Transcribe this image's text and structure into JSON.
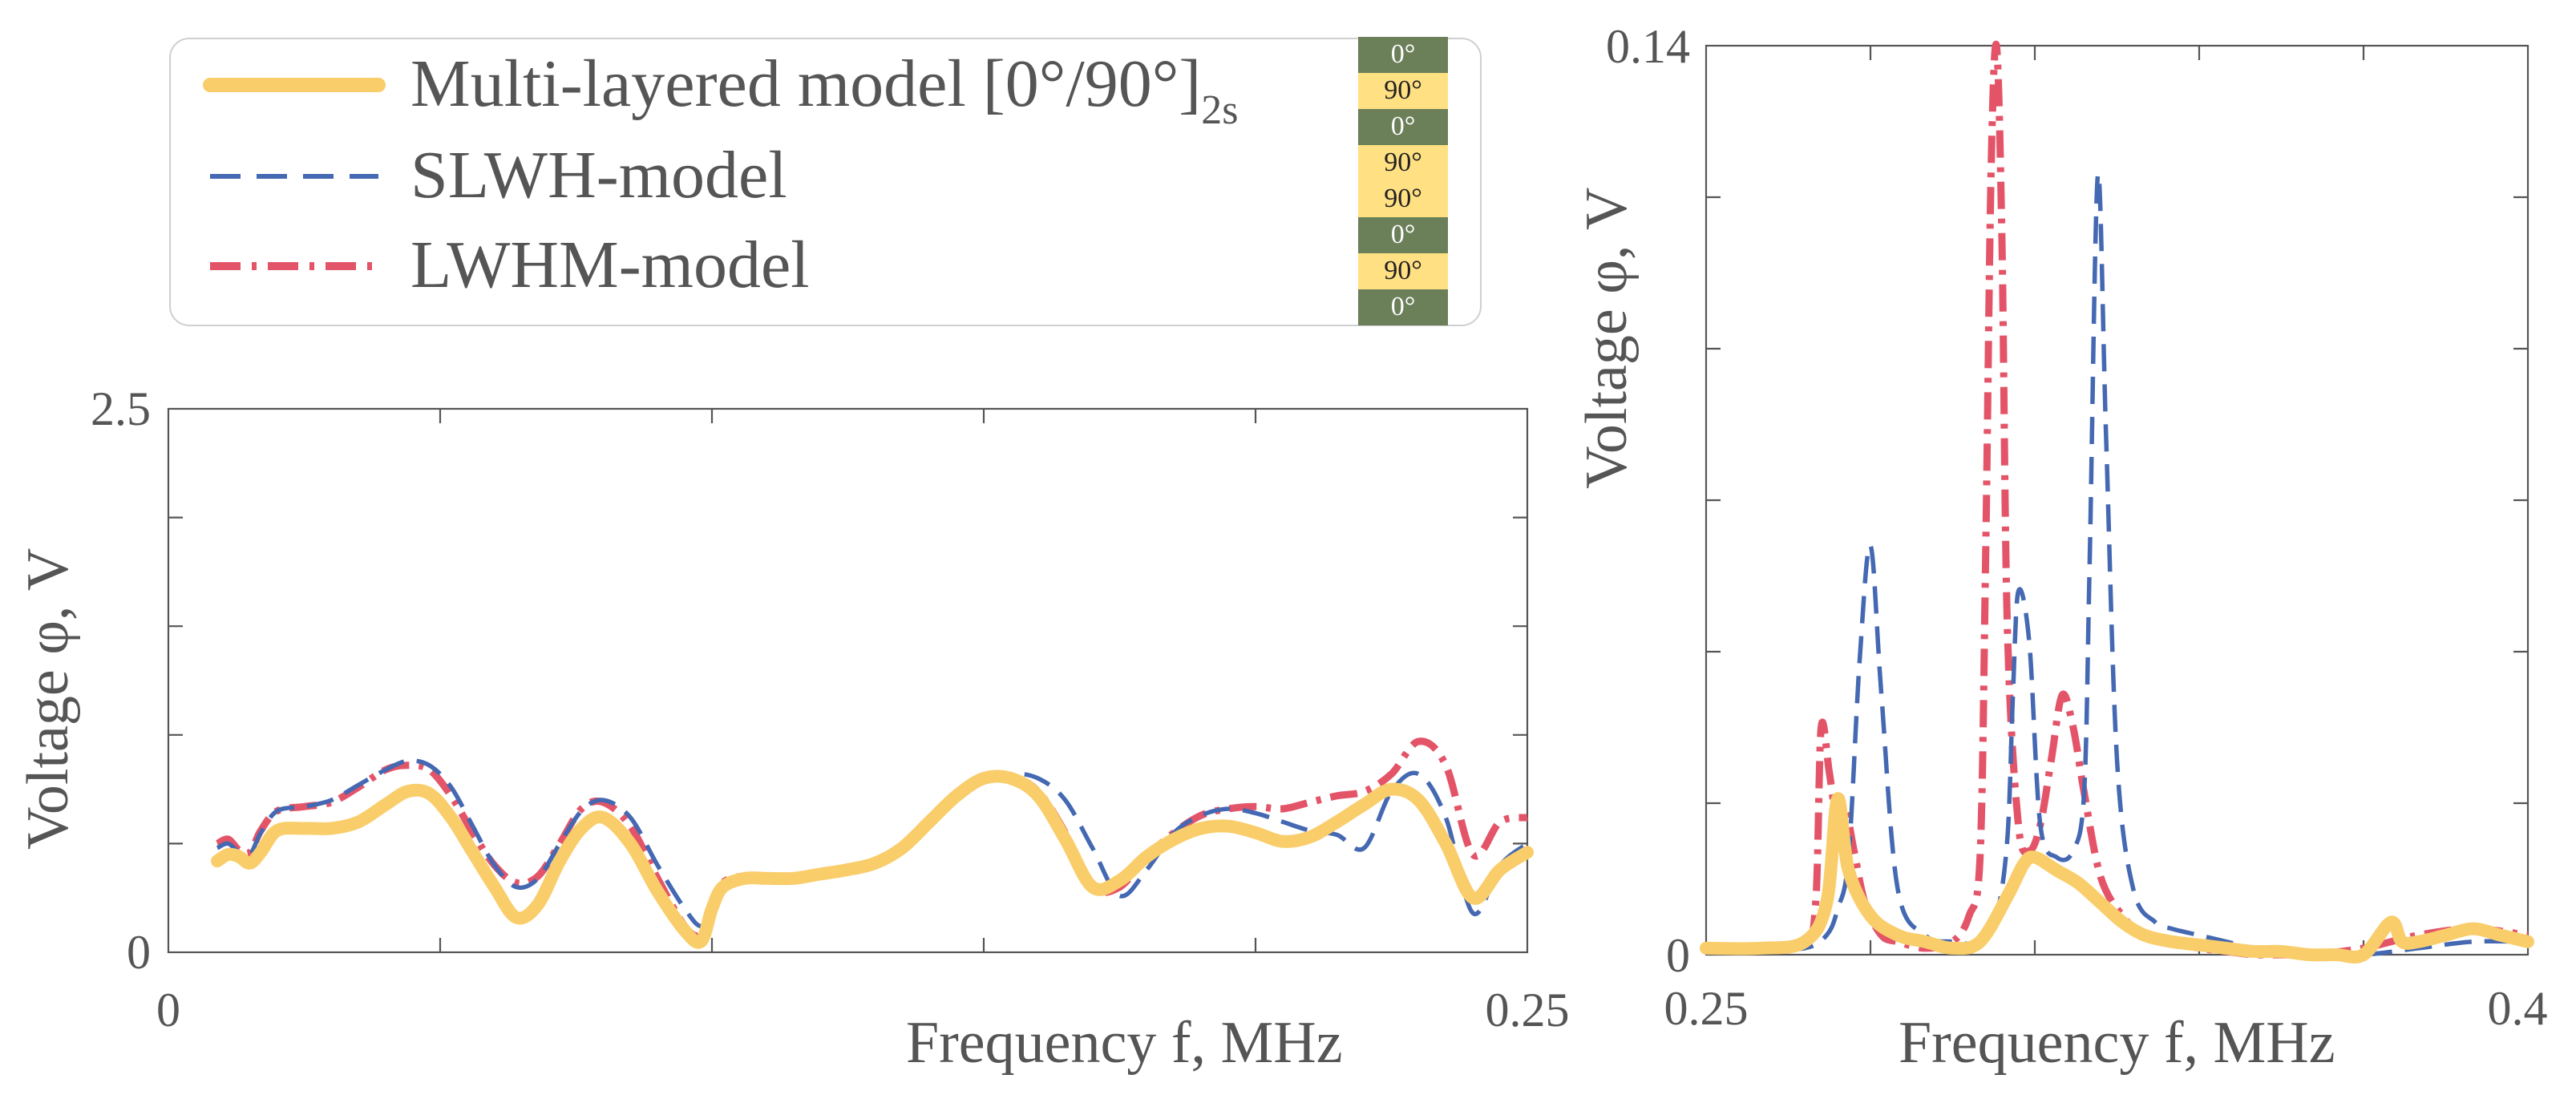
{
  "legend": {
    "entries": [
      {
        "label": "Multi-layered model [0°/90°]",
        "subscript": "2s",
        "style": "solid",
        "color": "#F9CD6A"
      },
      {
        "label": "SLWH-model",
        "subscript": "",
        "style": "dashed",
        "color": "#4468B2"
      },
      {
        "label": "LWHM-model",
        "subscript": "",
        "style": "dashdot",
        "color": "#E35468"
      }
    ],
    "layup": {
      "layers": [
        "0°",
        "90°",
        "0°",
        "90°",
        "90°",
        "0°",
        "90°",
        "0°"
      ],
      "colors": {
        "0": "#6B7F59",
        "90": "#FFE082"
      }
    }
  },
  "chart_data": [
    {
      "type": "line",
      "name": "left",
      "xlabel": "Frequency  f, MHz",
      "ylabel": "Voltage  φ, V",
      "xlim": [
        0,
        0.25
      ],
      "ylim": [
        0,
        2.5
      ],
      "xtick_labels": [
        "0",
        "0.25"
      ],
      "ytick_labels": [
        "0",
        "2.5"
      ],
      "series": [
        {
          "name": "Multi-layered model",
          "x": [
            0.009,
            0.011,
            0.013,
            0.015,
            0.017,
            0.02,
            0.025,
            0.03,
            0.035,
            0.04,
            0.044,
            0.048,
            0.052,
            0.056,
            0.06,
            0.064,
            0.068,
            0.072,
            0.076,
            0.08,
            0.085,
            0.09,
            0.095,
            0.098,
            0.1,
            0.102,
            0.106,
            0.11,
            0.115,
            0.12,
            0.125,
            0.13,
            0.135,
            0.14,
            0.145,
            0.15,
            0.155,
            0.16,
            0.165,
            0.17,
            0.175,
            0.18,
            0.185,
            0.19,
            0.195,
            0.2,
            0.205,
            0.21,
            0.215,
            0.22,
            0.225,
            0.23,
            0.235,
            0.24,
            0.245,
            0.25
          ],
          "y": [
            0.42,
            0.45,
            0.44,
            0.41,
            0.46,
            0.56,
            0.57,
            0.57,
            0.6,
            0.68,
            0.74,
            0.73,
            0.62,
            0.46,
            0.3,
            0.16,
            0.22,
            0.42,
            0.57,
            0.62,
            0.5,
            0.28,
            0.1,
            0.05,
            0.2,
            0.3,
            0.34,
            0.34,
            0.34,
            0.36,
            0.38,
            0.41,
            0.48,
            0.6,
            0.72,
            0.8,
            0.8,
            0.72,
            0.52,
            0.3,
            0.33,
            0.44,
            0.52,
            0.57,
            0.58,
            0.55,
            0.51,
            0.53,
            0.6,
            0.68,
            0.75,
            0.7,
            0.5,
            0.25,
            0.38,
            0.46
          ]
        },
        {
          "name": "SLWH-model",
          "x": [
            0.009,
            0.011,
            0.013,
            0.015,
            0.017,
            0.02,
            0.025,
            0.03,
            0.035,
            0.04,
            0.044,
            0.048,
            0.052,
            0.056,
            0.06,
            0.064,
            0.068,
            0.072,
            0.076,
            0.08,
            0.085,
            0.09,
            0.095,
            0.098,
            0.1,
            0.102,
            0.106,
            0.11,
            0.115,
            0.12,
            0.125,
            0.13,
            0.135,
            0.14,
            0.145,
            0.15,
            0.155,
            0.16,
            0.165,
            0.17,
            0.175,
            0.18,
            0.185,
            0.19,
            0.195,
            0.2,
            0.205,
            0.21,
            0.215,
            0.22,
            0.225,
            0.23,
            0.235,
            0.24,
            0.245,
            0.25
          ],
          "y": [
            0.48,
            0.5,
            0.46,
            0.45,
            0.55,
            0.65,
            0.67,
            0.7,
            0.77,
            0.84,
            0.88,
            0.86,
            0.76,
            0.58,
            0.4,
            0.3,
            0.34,
            0.5,
            0.65,
            0.7,
            0.62,
            0.4,
            0.2,
            0.12,
            0.2,
            0.32,
            0.35,
            0.34,
            0.34,
            0.36,
            0.39,
            0.42,
            0.48,
            0.58,
            0.7,
            0.78,
            0.82,
            0.8,
            0.7,
            0.48,
            0.26,
            0.38,
            0.55,
            0.63,
            0.66,
            0.64,
            0.6,
            0.56,
            0.54,
            0.48,
            0.74,
            0.82,
            0.62,
            0.18,
            0.4,
            0.5
          ]
        },
        {
          "name": "LWHM-model",
          "x": [
            0.009,
            0.011,
            0.013,
            0.015,
            0.017,
            0.02,
            0.025,
            0.03,
            0.035,
            0.04,
            0.044,
            0.048,
            0.052,
            0.056,
            0.06,
            0.064,
            0.068,
            0.072,
            0.076,
            0.08,
            0.085,
            0.09,
            0.095,
            0.098,
            0.1,
            0.102,
            0.106,
            0.11,
            0.115,
            0.12,
            0.125,
            0.13,
            0.135,
            0.14,
            0.145,
            0.15,
            0.155,
            0.16,
            0.165,
            0.17,
            0.175,
            0.18,
            0.185,
            0.19,
            0.195,
            0.2,
            0.205,
            0.21,
            0.215,
            0.22,
            0.225,
            0.23,
            0.235,
            0.24,
            0.245,
            0.25
          ],
          "y": [
            0.5,
            0.52,
            0.47,
            0.46,
            0.56,
            0.65,
            0.67,
            0.69,
            0.76,
            0.84,
            0.86,
            0.84,
            0.72,
            0.55,
            0.4,
            0.32,
            0.35,
            0.5,
            0.66,
            0.69,
            0.58,
            0.34,
            0.12,
            0.08,
            0.2,
            0.32,
            0.35,
            0.34,
            0.34,
            0.36,
            0.39,
            0.42,
            0.49,
            0.6,
            0.71,
            0.8,
            0.81,
            0.74,
            0.55,
            0.3,
            0.3,
            0.44,
            0.55,
            0.63,
            0.66,
            0.67,
            0.66,
            0.69,
            0.72,
            0.74,
            0.82,
            0.97,
            0.86,
            0.45,
            0.6,
            0.62
          ]
        }
      ]
    },
    {
      "type": "line",
      "name": "right",
      "xlabel": "Frequency  f, MHz",
      "ylabel": "Voltage  φ, V",
      "xlim": [
        0.25,
        0.4
      ],
      "ylim": [
        0,
        0.14
      ],
      "xtick_labels": [
        "0.25",
        "0.4"
      ],
      "ytick_labels": [
        "0",
        "0.14"
      ],
      "series": [
        {
          "name": "Multi-layered model",
          "x": [
            0.25,
            0.26,
            0.268,
            0.272,
            0.274,
            0.276,
            0.28,
            0.285,
            0.29,
            0.295,
            0.3,
            0.305,
            0.308,
            0.31,
            0.314,
            0.318,
            0.322,
            0.326,
            0.33,
            0.335,
            0.34,
            0.345,
            0.35,
            0.355,
            0.36,
            0.365,
            0.37,
            0.375,
            0.377,
            0.38,
            0.385,
            0.39,
            0.395,
            0.4
          ],
          "y": [
            0.001,
            0.001,
            0.002,
            0.008,
            0.024,
            0.013,
            0.006,
            0.003,
            0.002,
            0.001,
            0.002,
            0.009,
            0.014,
            0.015,
            0.013,
            0.011,
            0.008,
            0.005,
            0.003,
            0.002,
            0.0015,
            0.001,
            0.0005,
            0.0005,
            0.0,
            0.0,
            0.0,
            0.005,
            0.002,
            0.002,
            0.003,
            0.004,
            0.003,
            0.002
          ]
        },
        {
          "name": "SLWH-model",
          "x": [
            0.25,
            0.26,
            0.268,
            0.272,
            0.274,
            0.276,
            0.278,
            0.28,
            0.282,
            0.285,
            0.29,
            0.295,
            0.3,
            0.303,
            0.305,
            0.306,
            0.307,
            0.309,
            0.311,
            0.314,
            0.317,
            0.319,
            0.32,
            0.3215,
            0.323,
            0.325,
            0.328,
            0.332,
            0.335,
            0.34,
            0.345,
            0.35,
            0.355,
            0.36,
            0.37,
            0.38,
            0.39,
            0.4
          ],
          "y": [
            0.001,
            0.001,
            0.001,
            0.003,
            0.007,
            0.015,
            0.045,
            0.063,
            0.04,
            0.01,
            0.003,
            0.002,
            0.002,
            0.006,
            0.018,
            0.04,
            0.056,
            0.048,
            0.02,
            0.015,
            0.016,
            0.025,
            0.06,
            0.12,
            0.08,
            0.03,
            0.01,
            0.005,
            0.004,
            0.003,
            0.002,
            0.001,
            0.0005,
            0.0,
            0.0,
            0.001,
            0.002,
            0.002
          ]
        },
        {
          "name": "LWHM-model",
          "x": [
            0.25,
            0.26,
            0.268,
            0.27,
            0.271,
            0.2725,
            0.274,
            0.2755,
            0.277,
            0.279,
            0.282,
            0.285,
            0.29,
            0.295,
            0.298,
            0.3,
            0.301,
            0.302,
            0.303,
            0.304,
            0.305,
            0.307,
            0.309,
            0.311,
            0.313,
            0.315,
            0.317,
            0.319,
            0.322,
            0.326,
            0.33,
            0.335,
            0.34,
            0.345,
            0.35,
            0.355,
            0.36,
            0.37,
            0.38,
            0.39,
            0.4
          ],
          "y": [
            0.001,
            0.001,
            0.002,
            0.008,
            0.035,
            0.028,
            0.02,
            0.022,
            0.016,
            0.008,
            0.003,
            0.002,
            0.001,
            0.002,
            0.006,
            0.015,
            0.06,
            0.12,
            0.14,
            0.11,
            0.05,
            0.02,
            0.016,
            0.02,
            0.03,
            0.04,
            0.035,
            0.025,
            0.012,
            0.006,
            0.003,
            0.002,
            0.001,
            0.0005,
            0.0,
            0.0,
            0.0,
            0.001,
            0.003,
            0.004,
            0.003
          ]
        }
      ]
    }
  ]
}
